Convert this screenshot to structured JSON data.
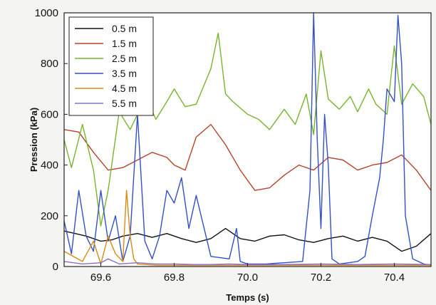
{
  "chart_data": {
    "type": "line",
    "title": "",
    "xlabel": "Temps (s)",
    "ylabel": "Pression (kPa)",
    "xlim": [
      69.5,
      70.5
    ],
    "ylim": [
      0,
      1000
    ],
    "x_ticks": [
      69.6,
      69.8,
      70.0,
      70.2,
      70.4
    ],
    "x_tick_labels": [
      "69.6",
      "69.8",
      "70.0",
      "70.2",
      "70.4"
    ],
    "y_ticks": [
      0,
      200,
      400,
      600,
      800,
      1000
    ],
    "y_tick_labels": [
      "0",
      "200",
      "400",
      "600",
      "800",
      "1000"
    ],
    "grid": false,
    "legend_position": "top-left",
    "series": [
      {
        "name": "0.5 m",
        "color": "#111111",
        "x": [
          69.5,
          69.53,
          69.56,
          69.6,
          69.63,
          69.66,
          69.7,
          69.74,
          69.78,
          69.82,
          69.86,
          69.9,
          69.94,
          69.98,
          70.02,
          70.06,
          70.1,
          70.14,
          70.18,
          70.22,
          70.26,
          70.3,
          70.34,
          70.38,
          70.42,
          70.46,
          70.5
        ],
        "y": [
          140,
          130,
          120,
          100,
          105,
          120,
          130,
          115,
          130,
          110,
          95,
          110,
          150,
          110,
          100,
          120,
          125,
          105,
          95,
          110,
          120,
          100,
          115,
          100,
          60,
          80,
          130
        ]
      },
      {
        "name": "1.5 m",
        "color": "#b5442a",
        "x": [
          69.5,
          69.54,
          69.58,
          69.62,
          69.66,
          69.7,
          69.74,
          69.78,
          69.8,
          69.83,
          69.86,
          69.9,
          69.94,
          69.98,
          70.02,
          70.06,
          70.1,
          70.14,
          70.18,
          70.22,
          70.26,
          70.3,
          70.34,
          70.38,
          70.42,
          70.46,
          70.5
        ],
        "y": [
          540,
          530,
          450,
          380,
          390,
          420,
          450,
          430,
          400,
          380,
          510,
          560,
          480,
          380,
          300,
          310,
          360,
          400,
          380,
          430,
          420,
          380,
          400,
          410,
          440,
          380,
          300
        ]
      },
      {
        "name": "2.5 m",
        "color": "#77b52d",
        "x": [
          69.5,
          69.52,
          69.55,
          69.58,
          69.6,
          69.62,
          69.65,
          69.68,
          69.7,
          69.72,
          69.75,
          69.78,
          69.8,
          69.83,
          69.86,
          69.9,
          69.92,
          69.94,
          69.96,
          70.0,
          70.03,
          70.06,
          70.1,
          70.13,
          70.16,
          70.18,
          70.2,
          70.22,
          70.25,
          70.28,
          70.3,
          70.33,
          70.35,
          70.38,
          70.4,
          70.42,
          70.45,
          70.48,
          70.5
        ],
        "y": [
          500,
          390,
          560,
          380,
          160,
          300,
          610,
          540,
          600,
          680,
          580,
          650,
          700,
          630,
          640,
          780,
          920,
          680,
          650,
          600,
          580,
          540,
          620,
          560,
          680,
          520,
          850,
          660,
          620,
          670,
          610,
          700,
          640,
          600,
          870,
          640,
          720,
          670,
          560
        ]
      },
      {
        "name": "3.5 m",
        "color": "#3450c4",
        "x": [
          69.5,
          69.52,
          69.54,
          69.56,
          69.58,
          69.6,
          69.62,
          69.64,
          69.66,
          69.68,
          69.7,
          69.72,
          69.74,
          69.76,
          69.78,
          69.8,
          69.82,
          69.84,
          69.86,
          69.9,
          69.95,
          69.97,
          69.98,
          70.0,
          70.05,
          70.1,
          70.15,
          70.17,
          70.18,
          70.19,
          70.2,
          70.21,
          70.22,
          70.23,
          70.25,
          70.3,
          70.32,
          70.34,
          70.36,
          70.37,
          70.38,
          70.4,
          70.41,
          70.42,
          70.43,
          70.45,
          70.48,
          70.5
        ],
        "y": [
          180,
          50,
          300,
          120,
          60,
          300,
          100,
          200,
          20,
          120,
          600,
          100,
          30,
          120,
          300,
          250,
          350,
          150,
          280,
          40,
          30,
          150,
          20,
          10,
          10,
          15,
          20,
          300,
          1000,
          500,
          150,
          600,
          400,
          30,
          10,
          20,
          40,
          200,
          350,
          500,
          700,
          650,
          990,
          800,
          200,
          30,
          10,
          5
        ]
      },
      {
        "name": "4.5 m",
        "color": "#d98a10",
        "x": [
          69.5,
          69.55,
          69.58,
          69.6,
          69.62,
          69.64,
          69.66,
          69.67,
          69.68,
          69.69,
          69.7,
          69.75,
          69.8,
          69.9,
          70.0,
          70.1,
          70.2,
          70.3,
          70.4,
          70.5
        ],
        "y": [
          60,
          20,
          100,
          10,
          120,
          50,
          20,
          300,
          120,
          30,
          10,
          5,
          5,
          5,
          5,
          5,
          5,
          5,
          5,
          5
        ]
      },
      {
        "name": "5.5 m",
        "color": "#8b6dc9",
        "x": [
          69.5,
          69.55,
          69.6,
          69.62,
          69.65,
          69.7,
          69.75,
          69.8,
          69.85,
          69.9,
          69.95,
          70.0,
          70.1,
          70.2,
          70.3,
          70.4,
          70.5
        ],
        "y": [
          20,
          10,
          15,
          30,
          10,
          15,
          10,
          10,
          8,
          8,
          10,
          8,
          8,
          10,
          8,
          10,
          8
        ]
      }
    ]
  }
}
